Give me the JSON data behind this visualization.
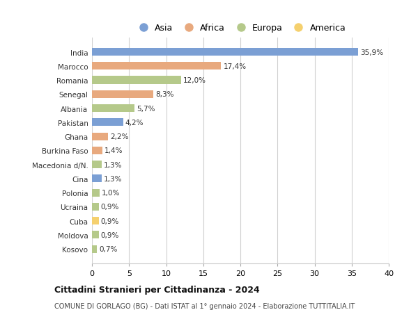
{
  "categories": [
    "India",
    "Marocco",
    "Romania",
    "Senegal",
    "Albania",
    "Pakistan",
    "Ghana",
    "Burkina Faso",
    "Macedonia d/N.",
    "Cina",
    "Polonia",
    "Ucraina",
    "Cuba",
    "Moldova",
    "Kosovo"
  ],
  "values": [
    35.9,
    17.4,
    12.0,
    8.3,
    5.7,
    4.2,
    2.2,
    1.4,
    1.3,
    1.3,
    1.0,
    0.9,
    0.9,
    0.9,
    0.7
  ],
  "labels": [
    "35,9%",
    "17,4%",
    "12,0%",
    "8,3%",
    "5,7%",
    "4,2%",
    "2,2%",
    "1,4%",
    "1,3%",
    "1,3%",
    "1,0%",
    "0,9%",
    "0,9%",
    "0,9%",
    "0,7%"
  ],
  "colors": [
    "#7b9fd4",
    "#e8a97e",
    "#b5c98a",
    "#e8a97e",
    "#b5c98a",
    "#7b9fd4",
    "#e8a97e",
    "#e8a97e",
    "#b5c98a",
    "#7b9fd4",
    "#b5c98a",
    "#b5c98a",
    "#f5d06e",
    "#b5c98a",
    "#b5c98a"
  ],
  "legend_labels": [
    "Asia",
    "Africa",
    "Europa",
    "America"
  ],
  "legend_colors": [
    "#7b9fd4",
    "#e8a97e",
    "#b5c98a",
    "#f5d06e"
  ],
  "title": "Cittadini Stranieri per Cittadinanza - 2024",
  "subtitle": "COMUNE DI GORLAGO (BG) - Dati ISTAT al 1° gennaio 2024 - Elaborazione TUTTITALIA.IT",
  "xlim": [
    0,
    40
  ],
  "xticks": [
    0,
    5,
    10,
    15,
    20,
    25,
    30,
    35,
    40
  ],
  "background_color": "#ffffff",
  "grid_color": "#d0d0d0"
}
